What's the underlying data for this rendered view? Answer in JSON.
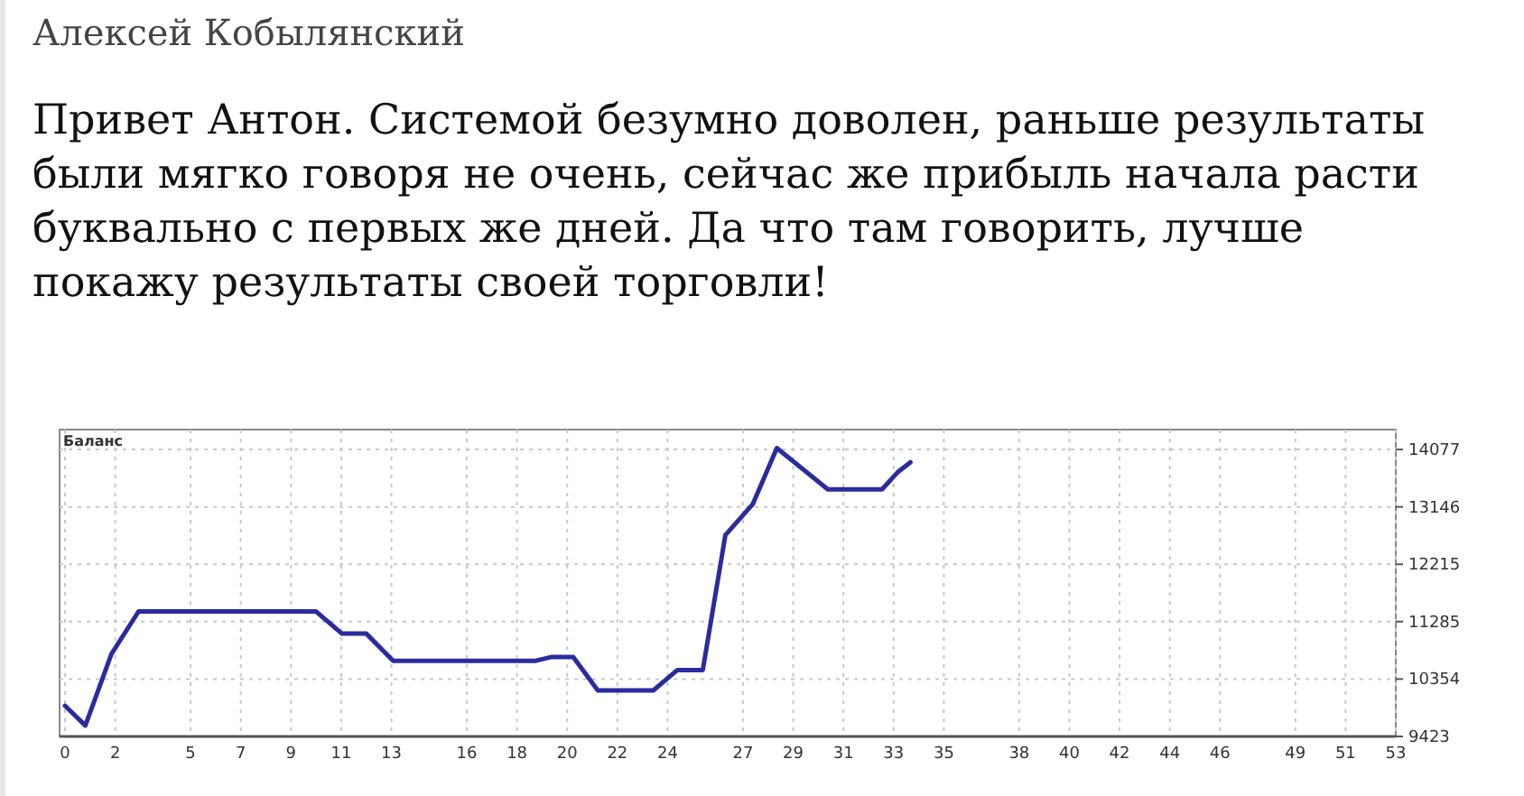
{
  "chart_data": {
    "type": "line",
    "title": "Алексей Кобылянский",
    "subtitle": "Привет Антон. Системой безумно доволен, раньше результаты были мягко говоря не очень, сейчас же прибыль начала расти буквально с первых же дней. Да что там говорить, лучше покажу результаты своей торговли!",
    "ylabel": "Баланс",
    "series": [
      {
        "color": "#2b2b9e",
        "x": [
          0,
          0.81,
          1.85,
          2.93,
          10.0,
          11.03,
          12.0,
          13.07,
          18.75,
          19.35,
          20.24,
          21.22,
          23.43,
          24.39,
          25.4,
          26.3,
          27.39,
          28.35,
          30.38,
          32.54,
          33.14,
          33.67
        ],
        "values": [
          9920,
          9600,
          10760,
          11450,
          11450,
          11090,
          11090,
          10650,
          10650,
          10710,
          10710,
          10170,
          10170,
          10500,
          10500,
          12690,
          13190,
          14100,
          13430,
          13430,
          13700,
          13870
        ]
      }
    ],
    "xlim": [
      0,
      53
    ],
    "xticks": [
      0,
      2,
      5,
      7,
      9,
      11,
      13,
      16,
      18,
      20,
      22,
      24,
      27,
      29,
      31,
      33,
      35,
      38,
      40,
      42,
      44,
      46,
      49,
      51,
      53
    ],
    "ylim": [
      9423,
      14400
    ],
    "yticks": [
      9423,
      10354,
      11285,
      12215,
      13146,
      14077
    ],
    "grid": true,
    "marker": "none",
    "line_style": "solid"
  }
}
